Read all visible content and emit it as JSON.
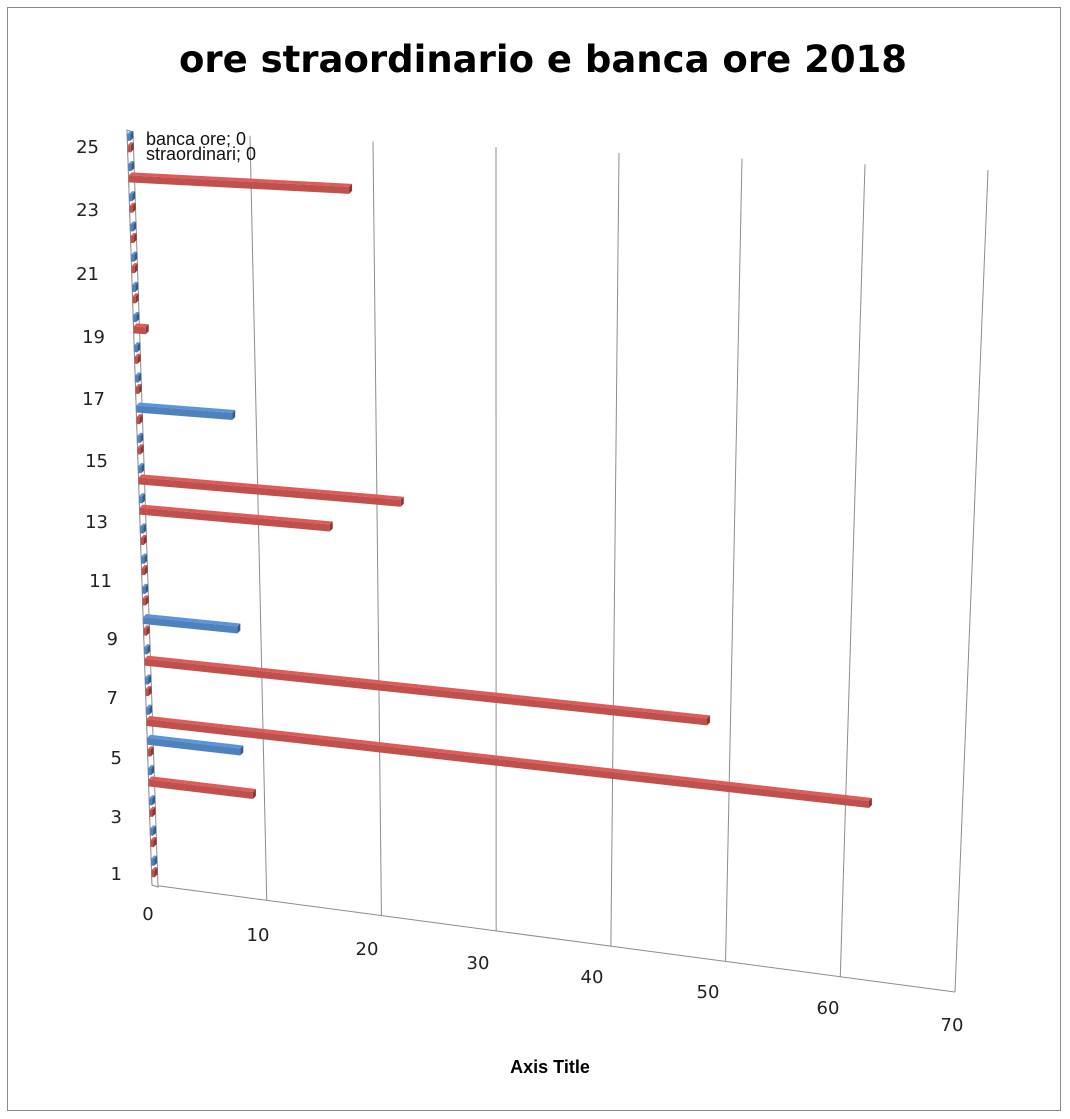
{
  "chart_data": {
    "type": "bar",
    "orientation": "horizontal",
    "style": "3d",
    "title": "ore straordinario e banca ore 2018",
    "xlabel": "Axis Title",
    "ylabel": "",
    "xlim": [
      0,
      70
    ],
    "x_ticks": [
      0,
      10,
      20,
      30,
      40,
      50,
      60,
      70
    ],
    "categories": [
      1,
      2,
      3,
      4,
      5,
      6,
      7,
      8,
      9,
      10,
      11,
      12,
      13,
      14,
      15,
      16,
      17,
      18,
      19,
      20,
      21,
      22,
      23,
      24,
      25
    ],
    "category_tick_labels": [
      1,
      3,
      5,
      7,
      9,
      11,
      13,
      15,
      17,
      19,
      21,
      23,
      25
    ],
    "grid": true,
    "series": [
      {
        "name": "straordinari",
        "color": "#c0504d",
        "values": [
          0,
          0,
          0,
          9,
          0,
          62,
          0,
          48,
          0,
          0,
          0,
          0,
          16,
          22,
          0,
          0,
          0,
          0,
          1,
          0,
          0,
          0,
          0,
          18,
          0
        ]
      },
      {
        "name": "banca ore",
        "color": "#4f81bd",
        "values": [
          0,
          0,
          0,
          0,
          8,
          0,
          0,
          0,
          8,
          0,
          0,
          0,
          0,
          0,
          0,
          8,
          0,
          0,
          0,
          0,
          0,
          0,
          0,
          0,
          0
        ]
      }
    ],
    "data_labels": [
      {
        "text": "banca ore; 0"
      },
      {
        "text": "straordinari; 0"
      }
    ]
  }
}
